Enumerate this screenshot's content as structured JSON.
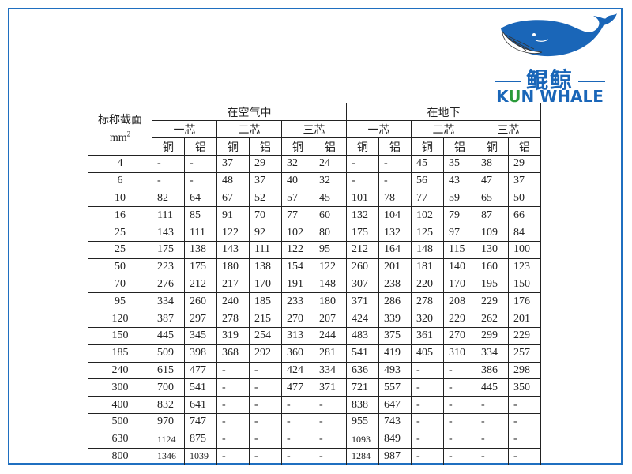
{
  "logo": {
    "chinese": "鲲鲸",
    "english_k": "K",
    "english_u": "U",
    "english_rest": "N WHALE",
    "color": "#1a66b8"
  },
  "table": {
    "corner_label": "标称截面",
    "corner_unit": "mm",
    "corner_unit_sup": "2",
    "groups": [
      "在空气中",
      "在地下"
    ],
    "cores": [
      "一芯",
      "二芯",
      "三芯",
      "一芯",
      "二芯",
      "三芯"
    ],
    "materials": [
      "铜",
      "铝",
      "铜",
      "铝",
      "铜",
      "铝",
      "铜",
      "铝",
      "铜",
      "铝",
      "铜",
      "铝"
    ],
    "rows": [
      {
        "size": "4",
        "values": [
          "-",
          "-",
          "37",
          "29",
          "32",
          "24",
          "-",
          "-",
          "45",
          "35",
          "38",
          "29"
        ]
      },
      {
        "size": "6",
        "values": [
          "-",
          "-",
          "48",
          "37",
          "40",
          "32",
          "-",
          "-",
          "56",
          "43",
          "47",
          "37"
        ]
      },
      {
        "size": "10",
        "values": [
          "82",
          "64",
          "67",
          "52",
          "57",
          "45",
          "101",
          "78",
          "77",
          "59",
          "65",
          "50"
        ]
      },
      {
        "size": "16",
        "values": [
          "111",
          "85",
          "91",
          "70",
          "77",
          "60",
          "132",
          "104",
          "102",
          "79",
          "87",
          "66"
        ]
      },
      {
        "size": "25",
        "values": [
          "143",
          "111",
          "122",
          "92",
          "102",
          "80",
          "175",
          "132",
          "125",
          "97",
          "109",
          "84"
        ]
      },
      {
        "size": "25",
        "values": [
          "175",
          "138",
          "143",
          "111",
          "122",
          "95",
          "212",
          "164",
          "148",
          "115",
          "130",
          "100"
        ]
      },
      {
        "size": "50",
        "values": [
          "223",
          "175",
          "180",
          "138",
          "154",
          "122",
          "260",
          "201",
          "181",
          "140",
          "160",
          "123"
        ]
      },
      {
        "size": "70",
        "values": [
          "276",
          "212",
          "217",
          "170",
          "191",
          "148",
          "307",
          "238",
          "220",
          "170",
          "195",
          "150"
        ]
      },
      {
        "size": "95",
        "values": [
          "334",
          "260",
          "240",
          "185",
          "233",
          "180",
          "371",
          "286",
          "278",
          "208",
          "229",
          "176"
        ]
      },
      {
        "size": "120",
        "values": [
          "387",
          "297",
          "278",
          "215",
          "270",
          "207",
          "424",
          "339",
          "320",
          "229",
          "262",
          "201"
        ]
      },
      {
        "size": "150",
        "values": [
          "445",
          "345",
          "319",
          "254",
          "313",
          "244",
          "483",
          "375",
          "361",
          "270",
          "299",
          "229"
        ]
      },
      {
        "size": "185",
        "values": [
          "509",
          "398",
          "368",
          "292",
          "360",
          "281",
          "541",
          "419",
          "405",
          "310",
          "334",
          "257"
        ]
      },
      {
        "size": "240",
        "values": [
          "615",
          "477",
          "-",
          "-",
          "424",
          "334",
          "636",
          "493",
          "-",
          "-",
          "386",
          "298"
        ]
      },
      {
        "size": "300",
        "values": [
          "700",
          "541",
          "-",
          "-",
          "477",
          "371",
          "721",
          "557",
          "-",
          "-",
          "445",
          "350"
        ]
      },
      {
        "size": "400",
        "values": [
          "832",
          "641",
          "-",
          "-",
          "-",
          "-",
          "838",
          "647",
          "-",
          "-",
          "-",
          "-"
        ]
      },
      {
        "size": "500",
        "values": [
          "970",
          "747",
          "-",
          "-",
          "-",
          "-",
          "955",
          "743",
          "-",
          "-",
          "-",
          "-"
        ]
      },
      {
        "size": "630",
        "values": [
          "1124",
          "875",
          "-",
          "-",
          "-",
          "-",
          "1093",
          "849",
          "-",
          "-",
          "-",
          "-"
        ]
      },
      {
        "size": "800",
        "values": [
          "1346",
          "1039",
          "-",
          "-",
          "-",
          "-",
          "1284",
          "987",
          "-",
          "-",
          "-",
          "-"
        ]
      }
    ]
  }
}
